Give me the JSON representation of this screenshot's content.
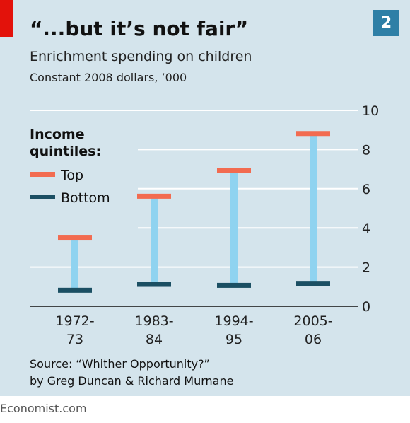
{
  "badge": "2",
  "title": "“...but it’s not fair”",
  "subtitle": "Enrichment spending on children",
  "unit_note": "Constant 2008 dollars, ’000",
  "legend": {
    "title_line1": "Income",
    "title_line2": "quintiles:",
    "top_label": "Top",
    "bottom_label": "Bottom"
  },
  "source_line1": "Source: “Whither Opportunity?”",
  "source_line2": "by Greg Duncan & Richard Murnane",
  "credit": "Economist.com",
  "colors": {
    "background": "#d4e4ec",
    "top": "#f26b50",
    "bottom": "#1b4f63",
    "range": "#8fd3f0",
    "grid": "#ffffff",
    "accent_red": "#e3120b",
    "badge": "#2e7fa6"
  },
  "chart_data": {
    "type": "range-bar",
    "categories": [
      [
        "1972-",
        "73"
      ],
      [
        "1983-",
        "84"
      ],
      [
        "1994-",
        "95"
      ],
      [
        "2005-",
        "06"
      ]
    ],
    "series": [
      {
        "name": "Top",
        "values": [
          3.5,
          5.6,
          6.9,
          8.8
        ]
      },
      {
        "name": "Bottom",
        "values": [
          0.8,
          1.1,
          1.05,
          1.15
        ]
      }
    ],
    "ylim": [
      0,
      10
    ],
    "yticks": [
      "0",
      "2",
      "4",
      "6",
      "8",
      "10"
    ],
    "ytick_values": [
      0,
      2,
      4,
      6,
      8,
      10
    ],
    "grid": true,
    "axis_side": "right",
    "legend": "left"
  }
}
